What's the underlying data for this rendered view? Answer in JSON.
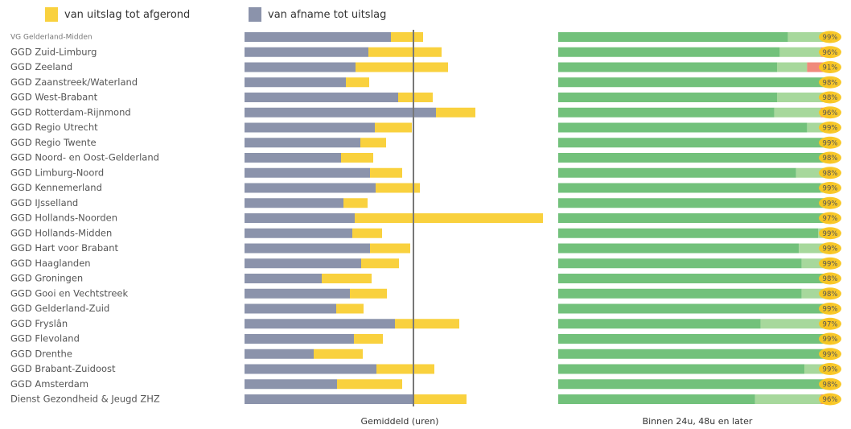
{
  "legend": {
    "items": [
      {
        "label": "van uitslag tot afgerond",
        "color": "#f9d13e"
      },
      {
        "label": "van afname tot uitslag",
        "color": "#8b93ab"
      }
    ]
  },
  "chart_data": [
    {
      "type": "bar",
      "orientation": "horizontal",
      "stacked": true,
      "xlabel": "Gemiddeld (uren)",
      "categories": [
        "VG Gelderland-Midden",
        "GGD Zuid-Limburg",
        "GGD Zeeland",
        "GGD Zaanstreek/Waterland",
        "GGD West-Brabant",
        "GGD Rotterdam-Rijnmond",
        "GGD Regio Utrecht",
        "GGD Regio Twente",
        "GGD Noord- en Oost-Gelderland",
        "GGD Limburg-Noord",
        "GGD Kennemerland",
        "GGD IJsselland",
        "GGD Hollands-Noorden",
        "GGD Hollands-Midden",
        "GGD Hart voor Brabant",
        "GGD Haaglanden",
        "GGD Groningen",
        "GGD Gooi en Vechtstreek",
        "GGD Gelderland-Zuid",
        "GGD Fryslân",
        "GGD Flevoland",
        "GGD Drenthe",
        "GGD Brabant-Zuidoost",
        "GGD Amsterdam",
        "Dienst Gezondheid & Jeugd ZHZ"
      ],
      "series": [
        {
          "name": "van afname tot uitslag",
          "color": "#8b93ab",
          "values": [
            182,
            154,
            138,
            126,
            191,
            238,
            162,
            144,
            120,
            156,
            163,
            123,
            137,
            134,
            156,
            145,
            96,
            131,
            114,
            187,
            136,
            86,
            164,
            115,
            210
          ]
        },
        {
          "name": "van uitslag tot afgerond",
          "color": "#f9d13e",
          "values": [
            40,
            91,
            115,
            29,
            43,
            49,
            46,
            32,
            40,
            40,
            55,
            30,
            234,
            37,
            50,
            47,
            62,
            46,
            34,
            80,
            36,
            61,
            72,
            81,
            66
          ]
        }
      ],
      "average": 210,
      "xlim": [
        0,
        380
      ]
    },
    {
      "type": "bar",
      "orientation": "horizontal",
      "stacked": true,
      "xlabel": "Binnen 24u, 48u en later",
      "categories": [
        "VG Gelderland-Midden",
        "GGD Zuid-Limburg",
        "GGD Zeeland",
        "GGD Zaanstreek/Waterland",
        "GGD West-Brabant",
        "GGD Rotterdam-Rijnmond",
        "GGD Regio Utrecht",
        "GGD Regio Twente",
        "GGD Noord- en Oost-Gelderland",
        "GGD Limburg-Noord",
        "GGD Kennemerland",
        "GGD IJsselland",
        "GGD Hollands-Noorden",
        "GGD Hollands-Midden",
        "GGD Hart voor Brabant",
        "GGD Haaglanden",
        "GGD Groningen",
        "GGD Gooi en Vechtstreek",
        "GGD Gelderland-Zuid",
        "GGD Fryslân",
        "GGD Flevoland",
        "GGD Drenthe",
        "GGD Brabant-Zuidoost",
        "GGD Amsterdam",
        "Dienst Gezondheid & Jeugd ZHZ"
      ],
      "series": [
        {
          "name": "binnen 24u",
          "color": "#72c17b",
          "values": [
            84,
            81,
            80,
            98,
            80,
            79,
            91,
            98,
            98,
            87,
            96,
            98,
            97,
            95,
            88,
            89,
            98,
            89,
            99,
            74,
            99,
            99,
            90,
            98,
            72
          ]
        },
        {
          "name": "binnen 48u",
          "color": "#a7d89c",
          "values": [
            15,
            15,
            11,
            0,
            18,
            17,
            8,
            1,
            0,
            11,
            3,
            1,
            0,
            4,
            11,
            10,
            0,
            9,
            0,
            23,
            0,
            0,
            9,
            0,
            24
          ]
        },
        {
          "name": "later",
          "color": "#f08a7c",
          "values": [
            1,
            4,
            9,
            2,
            2,
            4,
            1,
            1,
            2,
            2,
            1,
            1,
            3,
            1,
            1,
            1,
            2,
            2,
            1,
            3,
            1,
            1,
            1,
            2,
            4
          ]
        }
      ],
      "labels": [
        "99%",
        "96%",
        "91%",
        "98%",
        "98%",
        "96%",
        "99%",
        "99%",
        "98%",
        "98%",
        "99%",
        "99%",
        "97%",
        "99%",
        "99%",
        "99%",
        "98%",
        "98%",
        "99%",
        "97%",
        "99%",
        "99%",
        "99%",
        "98%",
        "96%"
      ],
      "label_color": "#f9c61f",
      "xlim": [
        0,
        100
      ]
    }
  ]
}
